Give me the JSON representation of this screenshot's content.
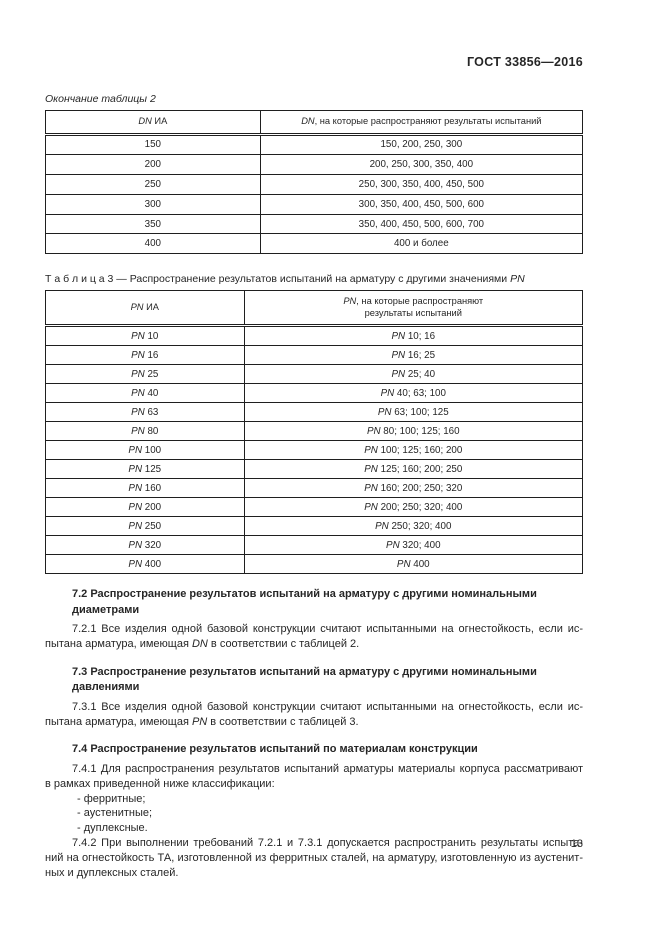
{
  "page": {
    "doc_code": "ГОСТ 33856—2016",
    "page_number": "13"
  },
  "table2": {
    "continuation_caption": "Окончание таблицы 2",
    "headers": [
      "DN ИА",
      "DN, на которые распространяют результаты испытаний"
    ],
    "rows": [
      [
        "150",
        "150, 200, 250, 300"
      ],
      [
        "200",
        "200, 250, 300, 350, 400"
      ],
      [
        "250",
        "250, 300, 350, 400, 450, 500"
      ],
      [
        "300",
        "300, 350, 400, 450, 500, 600"
      ],
      [
        "350",
        "350, 400, 450, 500, 600, 700"
      ],
      [
        "400",
        "400 и более"
      ]
    ]
  },
  "table3": {
    "caption": "Т а б л и ц а  3 — Распространение результатов испытаний на арматуру с другими значениями PN",
    "headers": [
      "PN ИА",
      "PN, на которые распространяют\nрезультаты испытаний"
    ],
    "rows": [
      [
        "PN 10",
        "PN 10; 16"
      ],
      [
        "PN 16",
        "PN 16; 25"
      ],
      [
        "PN 25",
        "PN 25; 40"
      ],
      [
        "PN 40",
        "PN 40; 63; 100"
      ],
      [
        "PN 63",
        "PN 63; 100; 125"
      ],
      [
        "PN 80",
        "PN 80; 100; 125; 160"
      ],
      [
        "PN 100",
        "PN 100; 125; 160; 200"
      ],
      [
        "PN 125",
        "PN 125; 160; 200; 250"
      ],
      [
        "PN 160",
        "PN 160; 200; 250; 320"
      ],
      [
        "PN 200",
        "PN 200; 250; 320; 400"
      ],
      [
        "PN 250",
        "PN 250; 320; 400"
      ],
      [
        "PN 320",
        "PN 320; 400"
      ],
      [
        "PN 400",
        "PN 400"
      ]
    ]
  },
  "sections": [
    {
      "heading_lines": [
        "7.2 Распространение результатов испытаний на арматуру с другими номинальными",
        "диаметрами"
      ],
      "blocks": [
        {
          "type": "paragraph",
          "lines": [
            "7.2.1 Все изделия одной базовой конструкции считают испытанными на огнестойкость, если ис-",
            "пытана арматура, имеющая DN в соответствии с таблицей 2."
          ]
        }
      ]
    },
    {
      "heading_lines": [
        "7.3 Распространение результатов испытаний на арматуру с другими номинальными",
        "давлениями"
      ],
      "blocks": [
        {
          "type": "paragraph",
          "lines": [
            "7.3.1 Все изделия одной базовой конструкции считают испытанными на огнестойкость, если ис-",
            "пытана арматура, имеющая PN в соответствии с таблицей 3."
          ]
        }
      ]
    },
    {
      "heading_lines": [
        "7.4 Распространение результатов испытаний по материалам конструкции"
      ],
      "blocks": [
        {
          "type": "paragraph",
          "lines": [
            "7.4.1 Для распространения результатов испытаний арматуры материалы корпуса рассматривают",
            "в рамках приведенной ниже классификации:"
          ]
        },
        {
          "type": "list-item",
          "text": "- ферритные;"
        },
        {
          "type": "list-item",
          "text": "- аустенитные;"
        },
        {
          "type": "list-item",
          "text": "- дуплексные."
        },
        {
          "type": "paragraph",
          "lines": [
            "7.4.2 При выполнении требований 7.2.1 и 7.3.1 допускается распространить результаты испыта-",
            "ний на огнестойкость ТА, изготовленной из ферритных сталей, на арматуру, изготовленную из аустенит-",
            "ных и дуплексных сталей."
          ]
        }
      ]
    }
  ]
}
